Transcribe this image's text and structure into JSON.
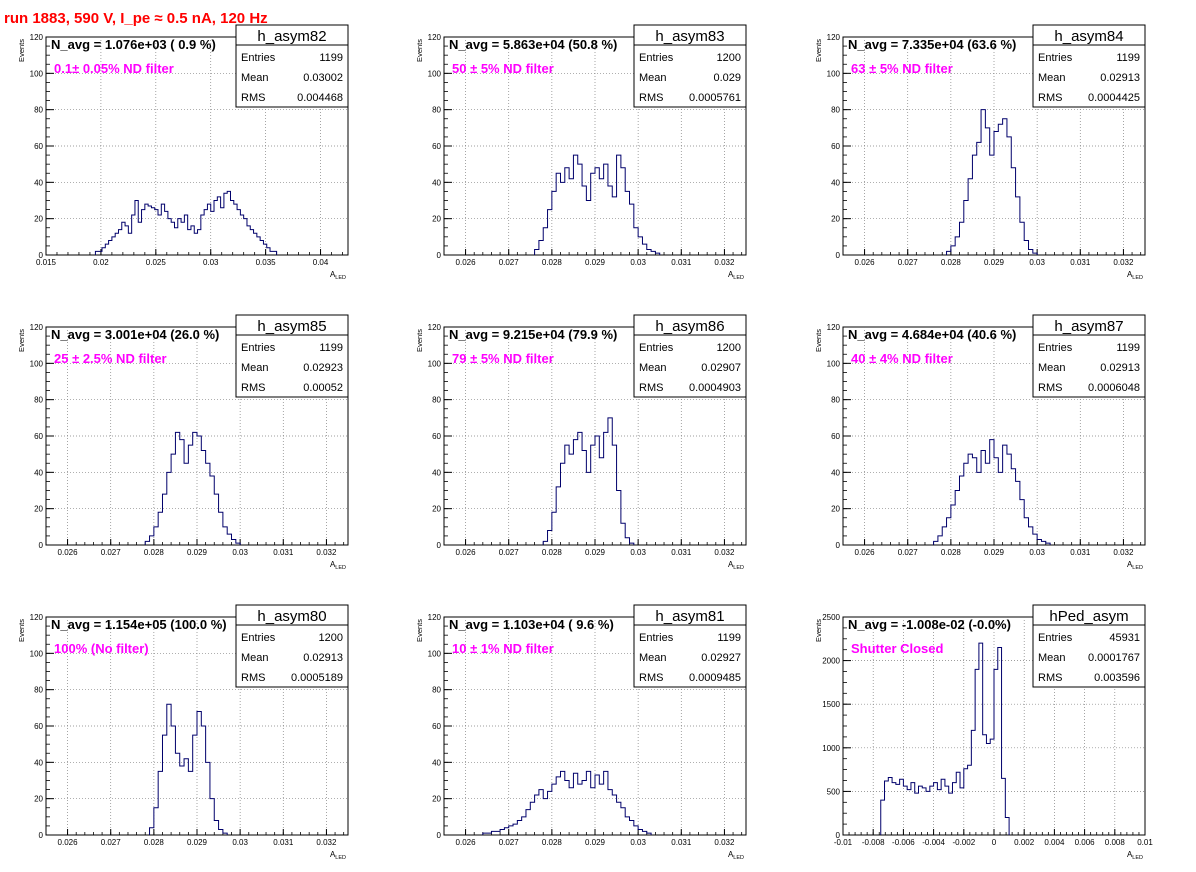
{
  "page_title": "run 1883,   590 V, I_pe ≈ 0.5 nA, 120 Hz",
  "colors": {
    "histogram": "#00006b",
    "annotation": "#ff00ff",
    "title": "#ff0000",
    "grid": "#7f7f7f"
  },
  "chart_data": [
    {
      "type": "histogram",
      "name": "h_asym82",
      "avg_label": "N_avg = 1.076e+03 ( 0.9 %)",
      "note": "0.1± 0.05% ND filter",
      "stats": {
        "Entries": "1199",
        "Mean": "0.03002",
        "RMS": "0.004468"
      },
      "xlim": [
        0.015,
        0.0425
      ],
      "ylim": [
        0,
        120
      ],
      "xticks": [
        "0.015",
        "0.02",
        "0.025",
        "0.03",
        "0.035",
        "0.04"
      ],
      "yticks": [
        "0",
        "20",
        "40",
        "60",
        "80",
        "100",
        "120"
      ],
      "xlabel": "A_LED",
      "ylabel": "Events",
      "grid": true,
      "bins": {
        "start": 0.0195,
        "width": 0.0003,
        "values": [
          2,
          2,
          4,
          6,
          8,
          10,
          12,
          14,
          18,
          16,
          12,
          22,
          30,
          18,
          25,
          28,
          27,
          26,
          25,
          22,
          28,
          24,
          20,
          18,
          15,
          20,
          18,
          22,
          14,
          16,
          12,
          14,
          22,
          25,
          28,
          24,
          30,
          32,
          26,
          34,
          35,
          30,
          28,
          25,
          22,
          20,
          16,
          14,
          12,
          10,
          8,
          6,
          4,
          2,
          2
        ]
      }
    },
    {
      "type": "histogram",
      "name": "h_asym83",
      "avg_label": "N_avg = 5.863e+04 (50.8 %)",
      "note": "50 ± 5% ND filter",
      "stats": {
        "Entries": "1200",
        "Mean": "0.029",
        "RMS": "0.0005761"
      },
      "xlim": [
        0.0255,
        0.0325
      ],
      "ylim": [
        0,
        120
      ],
      "xticks": [
        "0.026",
        "0.027",
        "0.028",
        "0.029",
        "0.03",
        "0.031",
        "0.032"
      ],
      "yticks": [
        "0",
        "20",
        "40",
        "60",
        "80",
        "100",
        "120"
      ],
      "xlabel": "A_LED",
      "ylabel": "Events",
      "grid": true,
      "bins": {
        "start": 0.0276,
        "width": 0.0001,
        "values": [
          3,
          8,
          15,
          25,
          35,
          45,
          40,
          48,
          42,
          55,
          50,
          38,
          30,
          45,
          48,
          42,
          50,
          38,
          32,
          55,
          48,
          35,
          28,
          15,
          10,
          6,
          3,
          2,
          1
        ]
      }
    },
    {
      "type": "histogram",
      "name": "h_asym84",
      "avg_label": "N_avg = 7.335e+04 (63.6 %)",
      "note": "63 ± 5% ND filter",
      "stats": {
        "Entries": "1199",
        "Mean": "0.02913",
        "RMS": "0.0004425"
      },
      "xlim": [
        0.0255,
        0.0325
      ],
      "ylim": [
        0,
        120
      ],
      "xticks": [
        "0.026",
        "0.027",
        "0.028",
        "0.029",
        "0.03",
        "0.031",
        "0.032"
      ],
      "yticks": [
        "0",
        "20",
        "40",
        "60",
        "80",
        "100",
        "120"
      ],
      "xlabel": "A_LED",
      "ylabel": "Events",
      "grid": true,
      "bins": {
        "start": 0.0279,
        "width": 0.0001,
        "values": [
          2,
          5,
          10,
          18,
          30,
          42,
          55,
          62,
          80,
          70,
          55,
          68,
          72,
          75,
          65,
          48,
          32,
          18,
          8,
          3,
          1
        ]
      }
    },
    {
      "type": "histogram",
      "name": "h_asym85",
      "avg_label": "N_avg = 3.001e+04 (26.0 %)",
      "note": "25 ± 2.5% ND filter",
      "stats": {
        "Entries": "1199",
        "Mean": "0.02923",
        "RMS": "0.00052"
      },
      "xlim": [
        0.0255,
        0.0325
      ],
      "ylim": [
        0,
        120
      ],
      "xticks": [
        "0.026",
        "0.027",
        "0.028",
        "0.029",
        "0.03",
        "0.031",
        "0.032"
      ],
      "yticks": [
        "0",
        "20",
        "40",
        "60",
        "80",
        "100",
        "120"
      ],
      "xlabel": "A_LED",
      "ylabel": "Events",
      "grid": true,
      "bins": {
        "start": 0.0278,
        "width": 0.0001,
        "values": [
          2,
          5,
          10,
          18,
          28,
          40,
          50,
          62,
          58,
          45,
          55,
          62,
          60,
          52,
          45,
          38,
          28,
          18,
          10,
          6,
          3,
          1
        ]
      }
    },
    {
      "type": "histogram",
      "name": "h_asym86",
      "avg_label": "N_avg = 9.215e+04 (79.9 %)",
      "note": "79 ± 5% ND filter",
      "stats": {
        "Entries": "1200",
        "Mean": "0.02907",
        "RMS": "0.0004903"
      },
      "xlim": [
        0.0255,
        0.0325
      ],
      "ylim": [
        0,
        120
      ],
      "xticks": [
        "0.026",
        "0.027",
        "0.028",
        "0.029",
        "0.03",
        "0.031",
        "0.032"
      ],
      "yticks": [
        "0",
        "20",
        "40",
        "60",
        "80",
        "100",
        "120"
      ],
      "xlabel": "A_LED",
      "ylabel": "Events",
      "grid": true,
      "bins": {
        "start": 0.0278,
        "width": 0.0001,
        "values": [
          2,
          8,
          18,
          32,
          45,
          55,
          50,
          58,
          62,
          52,
          40,
          55,
          60,
          48,
          62,
          70,
          55,
          30,
          12,
          4,
          1
        ]
      }
    },
    {
      "type": "histogram",
      "name": "h_asym87",
      "avg_label": "N_avg = 4.684e+04 (40.6 %)",
      "note": "40 ± 4% ND filter",
      "stats": {
        "Entries": "1199",
        "Mean": "0.02913",
        "RMS": "0.0006048"
      },
      "xlim": [
        0.0255,
        0.0325
      ],
      "ylim": [
        0,
        120
      ],
      "xticks": [
        "0.026",
        "0.027",
        "0.028",
        "0.029",
        "0.03",
        "0.031",
        "0.032"
      ],
      "yticks": [
        "0",
        "20",
        "40",
        "60",
        "80",
        "100",
        "120"
      ],
      "xlabel": "A_LED",
      "ylabel": "Events",
      "grid": true,
      "bins": {
        "start": 0.0276,
        "width": 0.0001,
        "values": [
          2,
          5,
          10,
          15,
          22,
          30,
          38,
          45,
          50,
          48,
          40,
          52,
          45,
          58,
          48,
          40,
          55,
          50,
          42,
          35,
          25,
          15,
          10,
          6,
          3,
          2,
          1
        ]
      }
    },
    {
      "type": "histogram",
      "name": "h_asym80",
      "avg_label": "N_avg = 1.154e+05 (100.0 %)",
      "note": "100% (No filter)",
      "stats": {
        "Entries": "1200",
        "Mean": "0.02913",
        "RMS": "0.0005189"
      },
      "xlim": [
        0.0255,
        0.0325
      ],
      "ylim": [
        0,
        120
      ],
      "xticks": [
        "0.026",
        "0.027",
        "0.028",
        "0.029",
        "0.03",
        "0.031",
        "0.032"
      ],
      "yticks": [
        "0",
        "20",
        "40",
        "60",
        "80",
        "100",
        "120"
      ],
      "xlabel": "A_LED",
      "ylabel": "Events",
      "grid": true,
      "bins": {
        "start": 0.0279,
        "width": 0.0001,
        "values": [
          4,
          15,
          35,
          55,
          72,
          60,
          45,
          38,
          42,
          35,
          55,
          68,
          60,
          40,
          20,
          8,
          3,
          1
        ]
      }
    },
    {
      "type": "histogram",
      "name": "h_asym81",
      "avg_label": "N_avg = 1.103e+04 ( 9.6 %)",
      "note": "10 ± 1% ND filter",
      "stats": {
        "Entries": "1199",
        "Mean": "0.02927",
        "RMS": "0.0009485"
      },
      "xlim": [
        0.0255,
        0.0325
      ],
      "ylim": [
        0,
        120
      ],
      "xticks": [
        "0.026",
        "0.027",
        "0.028",
        "0.029",
        "0.03",
        "0.031",
        "0.032"
      ],
      "yticks": [
        "0",
        "20",
        "40",
        "60",
        "80",
        "100",
        "120"
      ],
      "xlabel": "A_LED",
      "ylabel": "Events",
      "grid": true,
      "bins": {
        "start": 0.0264,
        "width": 0.0001,
        "values": [
          1,
          1,
          2,
          2,
          3,
          4,
          5,
          6,
          8,
          10,
          14,
          18,
          22,
          25,
          20,
          24,
          28,
          32,
          35,
          30,
          26,
          34,
          28,
          30,
          35,
          26,
          33,
          28,
          35,
          25,
          22,
          18,
          15,
          10,
          8,
          5,
          3,
          2,
          1
        ]
      }
    },
    {
      "type": "histogram",
      "name": "hPed_asym",
      "avg_label": "N_avg = -1.008e-02 (-0.0%)",
      "note": "Shutter Closed",
      "stats": {
        "Entries": "45931",
        "Mean": "0.0001767",
        "RMS": "0.003596"
      },
      "xlim": [
        -0.01,
        0.01
      ],
      "ylim": [
        0,
        2500
      ],
      "xticks": [
        "-0.01",
        "-0.008",
        "-0.006",
        "-0.004",
        "-0.002",
        "0",
        "0.002",
        "0.004",
        "0.006",
        "0.008",
        "0.01"
      ],
      "yticks": [
        "0",
        "500",
        "1000",
        "1500",
        "2000",
        "2500"
      ],
      "xlabel": "A_LED",
      "ylabel": "Events",
      "grid": true,
      "bins": {
        "start": -0.0075,
        "width": 0.00025,
        "values": [
          400,
          620,
          660,
          600,
          580,
          640,
          560,
          520,
          600,
          480,
          560,
          540,
          500,
          560,
          600,
          520,
          640,
          560,
          480,
          600,
          720,
          540,
          760,
          800,
          1200,
          1900,
          2200,
          1150,
          1050,
          1100,
          1900,
          2150,
          650,
          200
        ]
      }
    }
  ]
}
